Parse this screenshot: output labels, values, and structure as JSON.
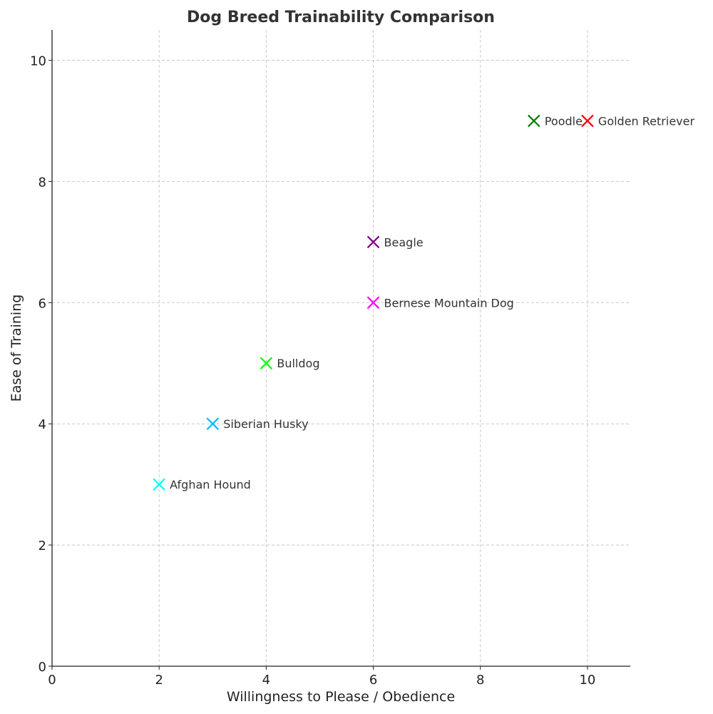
{
  "chart_data": {
    "type": "scatter",
    "title": "Dog Breed Trainability Comparison",
    "xlabel": "Willingness to Please / Obedience",
    "ylabel": "Ease of Training",
    "xlim": [
      0,
      10.8
    ],
    "ylim": [
      0,
      10.5
    ],
    "xticks": [
      0,
      2,
      4,
      6,
      8,
      10
    ],
    "yticks": [
      0,
      2,
      4,
      6,
      8,
      10
    ],
    "grid": true,
    "marker": "x",
    "points": [
      {
        "label": "Golden Retriever",
        "x": 10,
        "y": 9,
        "color": "#ff0000"
      },
      {
        "label": "Poodle",
        "x": 9,
        "y": 9,
        "color": "#008000"
      },
      {
        "label": "Beagle",
        "x": 6,
        "y": 7,
        "color": "#800080"
      },
      {
        "label": "Bernese Mountain Dog",
        "x": 6,
        "y": 6,
        "color": "#ff00ff"
      },
      {
        "label": "Bulldog",
        "x": 4,
        "y": 5,
        "color": "#00ff00"
      },
      {
        "label": "Siberian Husky",
        "x": 3,
        "y": 4,
        "color": "#00bfff"
      },
      {
        "label": "Afghan Hound",
        "x": 2,
        "y": 3,
        "color": "#00ffff"
      }
    ]
  }
}
